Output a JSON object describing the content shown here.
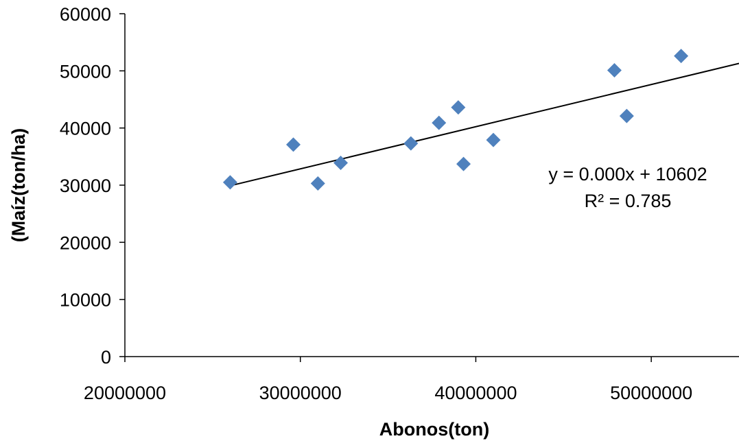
{
  "chart_data": {
    "type": "scatter",
    "xlabel": "Abonos(ton)",
    "ylabel": "(Maíz(ton/ha)",
    "xlim": [
      20000000,
      55000000
    ],
    "ylim": [
      0,
      60000
    ],
    "x_ticks": [
      20000000,
      30000000,
      40000000,
      50000000
    ],
    "y_ticks": [
      0,
      10000,
      20000,
      30000,
      40000,
      50000,
      60000
    ],
    "grid": false,
    "marker": "diamond",
    "marker_color": "#4f81bd",
    "series": [
      {
        "points": [
          {
            "x": 26000000,
            "y": 30500
          },
          {
            "x": 29600000,
            "y": 37100
          },
          {
            "x": 31000000,
            "y": 30300
          },
          {
            "x": 32300000,
            "y": 33900
          },
          {
            "x": 36300000,
            "y": 37300
          },
          {
            "x": 37900000,
            "y": 40900
          },
          {
            "x": 39000000,
            "y": 43600
          },
          {
            "x": 39300000,
            "y": 33700
          },
          {
            "x": 41000000,
            "y": 37900
          },
          {
            "x": 47900000,
            "y": 50100
          },
          {
            "x": 48600000,
            "y": 42100
          },
          {
            "x": 51700000,
            "y": 52600
          }
        ]
      }
    ],
    "trendline": {
      "equation": "y = 0.000x + 10602",
      "r_squared": "R² = 0.785",
      "start": {
        "x": 26000000,
        "y": 29900
      },
      "end": {
        "x": 55000000,
        "y": 51300
      }
    }
  }
}
